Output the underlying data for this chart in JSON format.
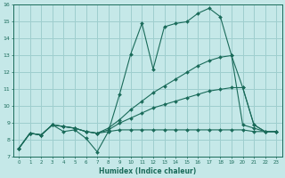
{
  "xlabel": "Humidex (Indice chaleur)",
  "bg_color": "#c5e8e8",
  "grid_color": "#9ecece",
  "line_color": "#1a6b5a",
  "xlim": [
    -0.5,
    23.5
  ],
  "ylim": [
    7,
    16
  ],
  "xticks": [
    0,
    1,
    2,
    3,
    4,
    5,
    6,
    7,
    8,
    9,
    10,
    11,
    12,
    13,
    14,
    15,
    16,
    17,
    18,
    19,
    20,
    21,
    22,
    23
  ],
  "yticks": [
    7,
    8,
    9,
    10,
    11,
    12,
    13,
    14,
    15,
    16
  ],
  "lines": [
    {
      "x": [
        0,
        1,
        2,
        3,
        4,
        5,
        6,
        7,
        8,
        9,
        10,
        11,
        12,
        13,
        14,
        15,
        16,
        17,
        18,
        19,
        20,
        21,
        22,
        23
      ],
      "y": [
        7.5,
        8.4,
        8.3,
        8.9,
        8.5,
        8.6,
        8.1,
        7.3,
        8.5,
        10.7,
        13.1,
        14.9,
        12.2,
        14.7,
        14.9,
        15.0,
        15.5,
        15.8,
        15.3,
        13.0,
        11.1,
        8.9,
        8.5,
        8.5
      ]
    },
    {
      "x": [
        0,
        1,
        2,
        3,
        4,
        5,
        6,
        7,
        8,
        9,
        10,
        11,
        12,
        13,
        14,
        15,
        16,
        17,
        18,
        19,
        20,
        21,
        22,
        23
      ],
      "y": [
        7.5,
        8.4,
        8.3,
        8.9,
        8.8,
        8.7,
        8.5,
        8.4,
        8.7,
        9.2,
        9.8,
        10.3,
        10.8,
        11.2,
        11.6,
        12.0,
        12.4,
        12.7,
        12.9,
        13.0,
        8.9,
        8.7,
        8.5,
        8.5
      ]
    },
    {
      "x": [
        0,
        1,
        2,
        3,
        4,
        5,
        6,
        7,
        8,
        9,
        10,
        11,
        12,
        13,
        14,
        15,
        16,
        17,
        18,
        19,
        20,
        21,
        22,
        23
      ],
      "y": [
        7.5,
        8.4,
        8.3,
        8.9,
        8.8,
        8.7,
        8.5,
        8.4,
        8.6,
        9.0,
        9.3,
        9.6,
        9.9,
        10.1,
        10.3,
        10.5,
        10.7,
        10.9,
        11.0,
        11.1,
        11.1,
        8.9,
        8.5,
        8.5
      ]
    },
    {
      "x": [
        0,
        1,
        2,
        3,
        4,
        5,
        6,
        7,
        8,
        9,
        10,
        11,
        12,
        13,
        14,
        15,
        16,
        17,
        18,
        19,
        20,
        21,
        22,
        23
      ],
      "y": [
        7.5,
        8.4,
        8.3,
        8.9,
        8.8,
        8.7,
        8.5,
        8.4,
        8.5,
        8.6,
        8.6,
        8.6,
        8.6,
        8.6,
        8.6,
        8.6,
        8.6,
        8.6,
        8.6,
        8.6,
        8.6,
        8.5,
        8.5,
        8.5
      ]
    }
  ]
}
